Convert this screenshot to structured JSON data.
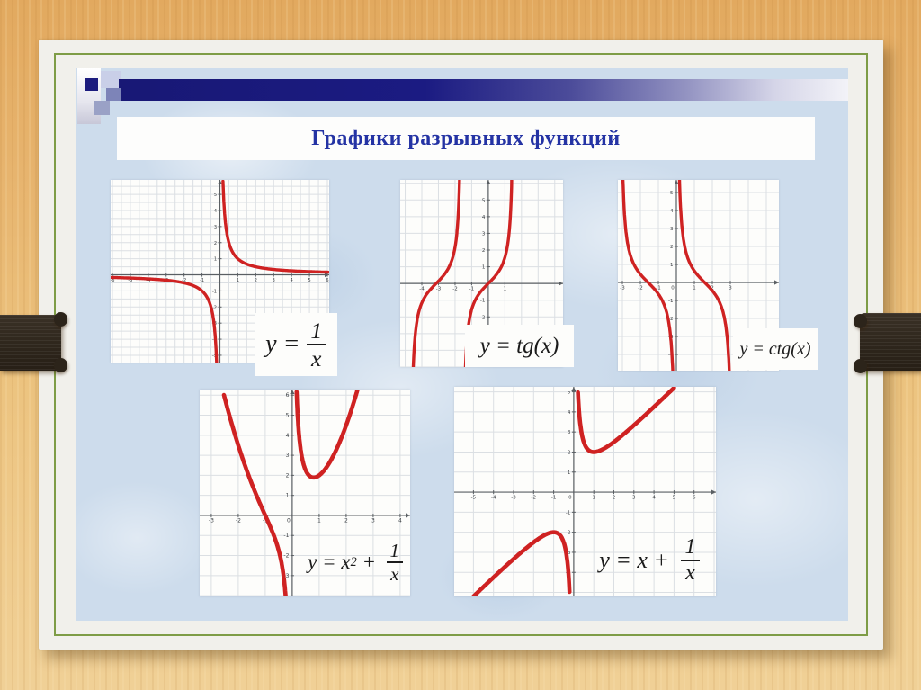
{
  "slide": {
    "title": "Графики разрывных функций"
  },
  "colors": {
    "accent_navy": "#1b1b7e",
    "title_blue": "#2433a4",
    "curve_red": "#cf2222",
    "olive_border": "#7e9c46",
    "slide_blue": "#cddcec",
    "wood_tan": "#ecc17c",
    "clip_brown": "#2e261c"
  },
  "formulas": [
    {
      "id": "reciprocal",
      "tokens": [
        {
          "t": "txt",
          "v": "y ="
        },
        {
          "t": "frac",
          "n": "1",
          "d": "x"
        }
      ]
    },
    {
      "id": "tangent",
      "tokens": [
        {
          "t": "txt",
          "v": "y = tg(x)"
        }
      ]
    },
    {
      "id": "cotangent",
      "tokens": [
        {
          "t": "txt",
          "v": "y = ctg(x)"
        }
      ]
    },
    {
      "id": "x2-plus-inv",
      "tokens": [
        {
          "t": "txt",
          "v": "y = x"
        },
        {
          "t": "sup",
          "v": "2"
        },
        {
          "t": "txt",
          "v": " + "
        },
        {
          "t": "frac",
          "n": "1",
          "d": "x"
        }
      ]
    },
    {
      "id": "x-plus-inv",
      "tokens": [
        {
          "t": "txt",
          "v": "y = x + "
        },
        {
          "t": "frac",
          "n": "1",
          "d": "x"
        }
      ]
    }
  ],
  "chart_data": [
    {
      "id": "reciprocal",
      "type": "line",
      "title": "y = 1/x",
      "xlim": [
        -6.1,
        6.1
      ],
      "ylim": [
        -5.45,
        5.9
      ],
      "grid_step": 0.5,
      "grid": true,
      "xticks": [
        -6,
        -5,
        -4,
        -3,
        -2,
        -1,
        1,
        2,
        3,
        4,
        5,
        6
      ],
      "yticks": [
        -5,
        -4,
        -3,
        -2,
        -1,
        1,
        2,
        3,
        4,
        5
      ],
      "tick_font": 5,
      "color": "#cf2222",
      "stroke_width": 3.4,
      "curves": [
        {
          "fn": "1/x",
          "domain": [
            -6.05,
            -0.172
          ]
        },
        {
          "fn": "1/x",
          "domain": [
            0.172,
            6.05
          ]
        }
      ],
      "vertical_asymptotes": [
        0
      ],
      "horizontal_asymptote": 0
    },
    {
      "id": "tangent",
      "type": "line",
      "title": "y = tg(x)",
      "xlim": [
        -5.3,
        4.5
      ],
      "ylim": [
        -5.0,
        6.2
      ],
      "grid_step": 1,
      "grid": true,
      "xticks": [
        -4,
        -3,
        -2,
        -1,
        1
      ],
      "yticks": [
        -2,
        -1,
        1,
        2,
        3,
        4,
        5
      ],
      "tick_font": 5.5,
      "color": "#cf2222",
      "stroke_width": 3.4,
      "curves": [
        {
          "fn": "tg",
          "domain": [
            -4.515,
            -1.731
          ]
        },
        {
          "fn": "tg",
          "domain": [
            -1.3734,
            1.411
          ]
        }
      ],
      "vertical_asymptotes": [
        -4.712,
        -1.5708,
        1.5708
      ],
      "x_intercepts": [
        -3.1416,
        0
      ]
    },
    {
      "id": "cotangent",
      "type": "line",
      "title": "y = ctg(x)",
      "xlim": [
        -3.25,
        5.7
      ],
      "ylim": [
        -4.9,
        5.7
      ],
      "grid_step": 1,
      "grid": true,
      "xticks": [
        -3,
        -2,
        -1,
        0,
        1,
        2,
        3
      ],
      "yticks": [
        -4,
        -3,
        -2,
        -1,
        1,
        2,
        3,
        4,
        5
      ],
      "tick_font": 5.5,
      "color": "#cf2222",
      "stroke_width": 3.4,
      "curves": [
        {
          "fn": "ctg",
          "domain": [
            -2.968,
            -0.2013
          ]
        },
        {
          "fn": "ctg",
          "domain": [
            0.1736,
            2.94
          ]
        }
      ],
      "vertical_asymptotes": [
        -3.1416,
        0,
        3.1416
      ],
      "x_intercepts": [
        -1.5708,
        1.5708
      ]
    },
    {
      "id": "x2-plus-inv",
      "type": "line",
      "title": "y = x² + 1/x",
      "xlim": [
        -3.43,
        4.37
      ],
      "ylim": [
        -4.04,
        6.28
      ],
      "grid_step": 1,
      "grid": true,
      "xticks": [
        -3,
        -2,
        -1,
        0,
        1,
        2,
        3,
        4
      ],
      "yticks": [
        -3,
        -2,
        -1,
        1,
        2,
        3,
        4,
        5,
        6
      ],
      "tick_font": 6,
      "color": "#cf2222",
      "stroke_width": 4.6,
      "curves": [
        {
          "fn": "x^2+1/x",
          "domain": [
            -2.53,
            -0.236
          ]
        },
        {
          "fn": "x^2+1/x",
          "domain": [
            0.163,
            2.43
          ]
        }
      ],
      "vertical_asymptotes": [
        0
      ],
      "local_min": [
        0.79,
        1.89
      ],
      "x_intercepts": [
        -1
      ]
    },
    {
      "id": "x-plus-inv",
      "type": "line",
      "title": "y = x + 1/x",
      "xlim": [
        -5.96,
        7.09
      ],
      "ylim": [
        -5.2,
        5.25
      ],
      "grid_step": 1,
      "grid": true,
      "xticks": [
        -6,
        -5,
        -4,
        -3,
        -2,
        -1,
        0,
        1,
        2,
        3,
        4,
        5,
        6
      ],
      "yticks": [
        -4,
        -3,
        -2,
        -1,
        1,
        2,
        3,
        4,
        5
      ],
      "tick_font": 5.5,
      "color": "#cf2222",
      "stroke_width": 4.6,
      "curves": [
        {
          "fn": "x+1/x",
          "domain": [
            -5.0,
            -0.21
          ]
        },
        {
          "fn": "x+1/x",
          "domain": [
            0.21,
            5.0
          ]
        }
      ],
      "vertical_asymptotes": [
        0
      ],
      "local_min": [
        1,
        2
      ],
      "local_max": [
        -1,
        -2
      ]
    }
  ]
}
